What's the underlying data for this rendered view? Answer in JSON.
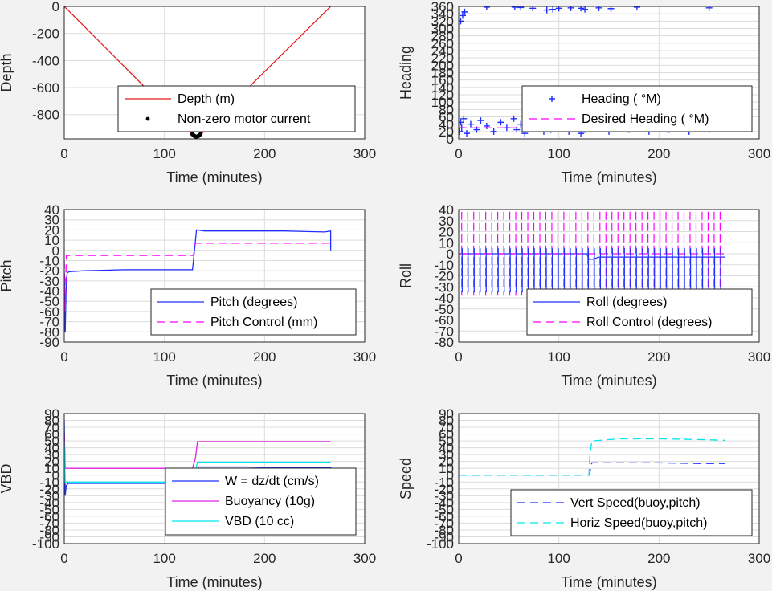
{
  "chart_data": [
    {
      "type": "line",
      "xlabel": "Time (minutes)",
      "ylabel": "Depth",
      "xlim": [
        0,
        300
      ],
      "ylim": [
        -980,
        0
      ],
      "xticks": [
        0,
        100,
        200,
        300
      ],
      "yticks": [
        0,
        -200,
        -400,
        -600,
        -800
      ],
      "grid": true,
      "legend_position": "bottom-right",
      "series": [
        {
          "name": "Depth (m)",
          "kind": "line",
          "color": "#e41a1c",
          "dash": "none",
          "x": [
            0,
            130,
            134,
            266
          ],
          "y": [
            0,
            -965,
            -965,
            0
          ]
        },
        {
          "name": "Non-zero motor current",
          "kind": "dots",
          "color": "#000000",
          "x": [
            128,
            129,
            130,
            131,
            132,
            133,
            134,
            135,
            136
          ],
          "y": [
            -945,
            -952,
            -958,
            -962,
            -965,
            -962,
            -958,
            -952,
            -945
          ]
        }
      ]
    },
    {
      "type": "scatter",
      "xlabel": "Time (minutes)",
      "ylabel": "Heading",
      "xlim": [
        0,
        300
      ],
      "ylim": [
        0,
        360
      ],
      "xticks": [
        0,
        100,
        200,
        300
      ],
      "yticks": [
        0,
        20,
        40,
        60,
        80,
        100,
        120,
        140,
        160,
        180,
        200,
        220,
        240,
        260,
        280,
        300,
        320,
        340,
        360
      ],
      "grid": true,
      "legend_position": "bottom-right",
      "series": [
        {
          "name": "Heading ( °M)",
          "kind": "plus",
          "color": "#1f2fff",
          "x": [
            1,
            2,
            3,
            5,
            8,
            12,
            18,
            22,
            28,
            35,
            42,
            48,
            55,
            58,
            62,
            66,
            70,
            75,
            80,
            85,
            88,
            90,
            92,
            95,
            100,
            105,
            110,
            115,
            120,
            122,
            124,
            126,
            130,
            135,
            140,
            145,
            150,
            155,
            160,
            165,
            170,
            175,
            180,
            185,
            190,
            195,
            200,
            205,
            210,
            215,
            220,
            225,
            230,
            235,
            240,
            245,
            250,
            255,
            260,
            265,
            2,
            4,
            6,
            28,
            56,
            62,
            74,
            88,
            94,
            100,
            112,
            122,
            126,
            140,
            152,
            178,
            250
          ],
          "y": [
            20,
            45,
            30,
            55,
            15,
            40,
            25,
            50,
            35,
            20,
            45,
            30,
            55,
            25,
            40,
            15,
            50,
            30,
            45,
            20,
            35,
            55,
            25,
            40,
            30,
            50,
            20,
            45,
            35,
            15,
            55,
            25,
            40,
            60,
            30,
            75,
            20,
            50,
            35,
            45,
            25,
            55,
            30,
            40,
            20,
            50,
            35,
            45,
            25,
            55,
            30,
            40,
            20,
            50,
            35,
            45,
            25,
            55,
            30,
            40,
            320,
            335,
            345,
            358,
            358,
            357,
            355,
            350,
            352,
            355,
            356,
            355,
            352,
            356,
            354,
            358,
            356
          ]
        },
        {
          "name": "Desired Heading ( °M)",
          "kind": "dash",
          "color": "#ff00ff",
          "x": [
            0,
            266
          ],
          "y": [
            30,
            30
          ]
        }
      ]
    },
    {
      "type": "line",
      "xlabel": "Time (minutes)",
      "ylabel": "Pitch",
      "xlim": [
        0,
        300
      ],
      "ylim": [
        -90,
        40
      ],
      "xticks": [
        0,
        100,
        200,
        300
      ],
      "yticks": [
        40,
        30,
        20,
        10,
        0,
        -10,
        -20,
        -30,
        -40,
        -50,
        -60,
        -70,
        -80,
        -90
      ],
      "grid": true,
      "legend_position": "bottom-right",
      "series": [
        {
          "name": "Pitch (degrees)",
          "kind": "line",
          "color": "#1f2fff",
          "dash": "none",
          "x": [
            0,
            1,
            2,
            3,
            5,
            20,
            60,
            100,
            128,
            130,
            132,
            140,
            180,
            220,
            260,
            266,
            266
          ],
          "y": [
            -20,
            -80,
            -30,
            -22,
            -21,
            -20,
            -19,
            -19,
            -19,
            0,
            20,
            19,
            19,
            19,
            18,
            19,
            0
          ]
        },
        {
          "name": "Pitch Control (mm)",
          "kind": "line",
          "color": "#ff00ff",
          "dash": "10,6",
          "x": [
            0,
            1,
            2,
            4,
            129,
            131,
            266
          ],
          "y": [
            -10,
            -60,
            -5,
            -5,
            -5,
            7,
            7
          ]
        }
      ]
    },
    {
      "type": "line",
      "xlabel": "Time (minutes)",
      "ylabel": "Roll",
      "xlim": [
        0,
        300
      ],
      "ylim": [
        -80,
        40
      ],
      "xticks": [
        0,
        100,
        200,
        300
      ],
      "yticks": [
        40,
        30,
        20,
        10,
        0,
        -10,
        -20,
        -30,
        -40,
        -50,
        -60,
        -70,
        -80
      ],
      "grid": true,
      "legend_position": "bottom-right",
      "series": [
        {
          "name": "Roll (degrees)",
          "kind": "line",
          "color": "#1f2fff",
          "dash": "none",
          "x": [
            0,
            20,
            60,
            100,
            128,
            130,
            134,
            140,
            180,
            220,
            266
          ],
          "y": [
            0,
            0,
            0,
            0,
            0,
            -5,
            -5,
            -3,
            -3,
            -3,
            -3
          ]
        },
        {
          "name": "Roll Control (degrees)",
          "kind": "line",
          "color": "#ff00ff",
          "dash": "10,6",
          "x": [
            0,
            266
          ],
          "y": [
            0,
            0
          ]
        }
      ],
      "oscillation": {
        "roll_period_minutes": 6,
        "roll_amplitude_low": -35,
        "control_amplitude_high": 38,
        "control_amplitude_low": -38
      }
    },
    {
      "type": "line",
      "xlabel": "Time (minutes)",
      "ylabel": "VBD",
      "xlim": [
        0,
        300
      ],
      "ylim": [
        -100,
        90
      ],
      "xticks": [
        0,
        100,
        200,
        300
      ],
      "yticks": [
        90,
        80,
        70,
        60,
        50,
        40,
        30,
        20,
        10,
        0,
        -10,
        -20,
        -30,
        -40,
        -50,
        -60,
        -70,
        -80,
        -90,
        -100
      ],
      "grid": true,
      "legend_position": "bottom-right",
      "series": [
        {
          "name": "W = dz/dt (cm/s)",
          "kind": "line",
          "color": "#1f2fff",
          "dash": "none",
          "x": [
            0,
            1,
            2,
            4,
            20,
            60,
            100,
            128,
            130,
            134,
            140,
            180,
            220,
            260,
            266,
            266
          ],
          "y": [
            80,
            -30,
            -15,
            -12,
            -12,
            -12,
            -12,
            -12,
            0,
            12,
            12,
            12,
            11,
            11,
            11,
            0
          ]
        },
        {
          "name": "Buoyancy (10g)",
          "kind": "line",
          "color": "#e020e0",
          "dash": "none",
          "x": [
            0,
            1,
            2,
            4,
            128,
            131,
            133,
            266
          ],
          "y": [
            60,
            10,
            10,
            10,
            10,
            25,
            49,
            49
          ]
        },
        {
          "name": "VBD (10 cc)",
          "kind": "line",
          "color": "#00e5ee",
          "dash": "none",
          "x": [
            0,
            1,
            2,
            4,
            128,
            131,
            133,
            266
          ],
          "y": [
            50,
            -10,
            -10,
            -10,
            -10,
            5,
            19,
            19
          ]
        }
      ]
    },
    {
      "type": "line",
      "xlabel": "Time (minutes)",
      "ylabel": "Speed",
      "xlim": [
        0,
        300
      ],
      "ylim": [
        -100,
        90
      ],
      "xticks": [
        0,
        100,
        200,
        300
      ],
      "yticks": [
        90,
        80,
        70,
        60,
        50,
        40,
        30,
        20,
        10,
        0,
        -10,
        -20,
        -30,
        -40,
        -50,
        -60,
        -70,
        -80,
        -90,
        -100
      ],
      "grid": true,
      "legend_position": "bottom-right",
      "series": [
        {
          "name": "Vert Speed(buoy,pitch)",
          "kind": "line",
          "color": "#1f2fff",
          "dash": "10,6",
          "x": [
            0,
            130,
            131,
            133,
            160,
            200,
            240,
            266
          ],
          "y": [
            0,
            0,
            5,
            18,
            18,
            18,
            17,
            17
          ]
        },
        {
          "name": "Horiz Speed(buoy,pitch)",
          "kind": "line",
          "color": "#00e5ee",
          "dash": "10,6",
          "x": [
            0,
            130,
            131,
            133,
            160,
            200,
            240,
            266
          ],
          "y": [
            0,
            0,
            30,
            50,
            53,
            53,
            52,
            51
          ]
        }
      ]
    }
  ]
}
